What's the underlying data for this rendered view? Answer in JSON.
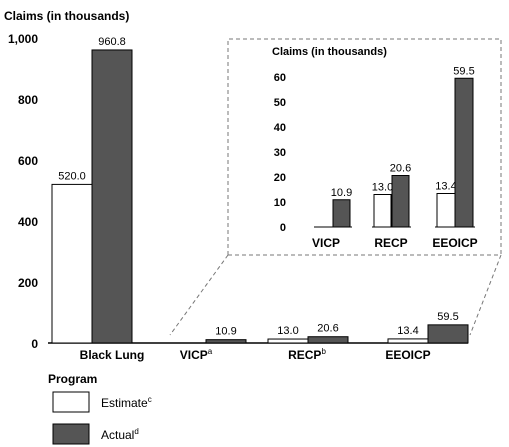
{
  "chart_data": {
    "type": "bar",
    "ylabel": "Claims (in thousands)",
    "ylim": [
      0,
      1000
    ],
    "yticks": [
      "0",
      "200",
      "400",
      "600",
      "800",
      "1,000"
    ],
    "xlabel": "Program",
    "categories": [
      {
        "name": "Black Lung",
        "sup": ""
      },
      {
        "name": "VICP",
        "sup": "a"
      },
      {
        "name": "RECP",
        "sup": "b"
      },
      {
        "name": "EEOICP",
        "sup": ""
      }
    ],
    "series": [
      {
        "name": "Estimate",
        "sup": "c",
        "color": "#ffffff",
        "values": [
          520.0,
          null,
          13.0,
          13.4
        ],
        "labels": [
          "520.0",
          "",
          "13.0",
          "13.4"
        ]
      },
      {
        "name": "Actual",
        "sup": "d",
        "color": "#555555",
        "values": [
          960.8,
          10.9,
          20.6,
          59.5
        ],
        "labels": [
          "960.8",
          "10.9",
          "20.6",
          "59.5"
        ]
      }
    ],
    "inset": {
      "ylabel": "Claims (in thousands)",
      "ylim": [
        0,
        60
      ],
      "yticks": [
        "0",
        "10",
        "20",
        "30",
        "40",
        "50",
        "60"
      ],
      "categories": [
        "VICP",
        "RECP",
        "EEOICP"
      ],
      "series": [
        {
          "name": "Estimate",
          "values": [
            null,
            13.0,
            13.4
          ],
          "labels": [
            "",
            "13.0",
            "13.4"
          ]
        },
        {
          "name": "Actual",
          "values": [
            10.9,
            20.6,
            59.5
          ],
          "labels": [
            "10.9",
            "20.6",
            "59.5"
          ]
        }
      ]
    },
    "legend": {
      "placement": "bottom-left",
      "title": "Program"
    },
    "grid": false
  }
}
